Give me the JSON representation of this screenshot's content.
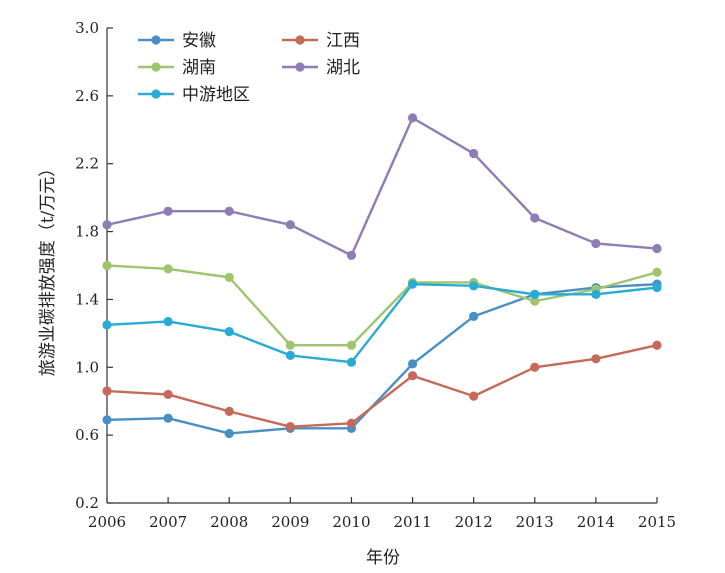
{
  "chart_data": {
    "type": "line",
    "title": "",
    "xlabel": "年份",
    "ylabel": "旅游业碳排放强度（t/万元）",
    "x": [
      "2006",
      "2007",
      "2008",
      "2009",
      "2010",
      "2011",
      "2012",
      "2013",
      "2014",
      "2015"
    ],
    "ylim": [
      0.2,
      3.0
    ],
    "yticks": [
      "3.0",
      "2.6",
      "2.2",
      "1.8",
      "1.4",
      "1.0",
      "0.6",
      "0.2"
    ],
    "grid": false,
    "legend_position": "top-left",
    "series": [
      {
        "name": "安徽",
        "color": "#4a8fc4",
        "values": [
          0.69,
          0.7,
          0.61,
          0.64,
          0.64,
          1.02,
          1.3,
          1.43,
          1.47,
          1.49
        ]
      },
      {
        "name": "江西",
        "color": "#c56a5a",
        "values": [
          0.86,
          0.84,
          0.74,
          0.65,
          0.67,
          0.95,
          0.83,
          1.0,
          1.05,
          1.13
        ]
      },
      {
        "name": "湖南",
        "color": "#9fc46e",
        "values": [
          1.6,
          1.58,
          1.53,
          1.13,
          1.13,
          1.5,
          1.5,
          1.39,
          1.46,
          1.56
        ]
      },
      {
        "name": "湖北",
        "color": "#8d7db4",
        "values": [
          1.84,
          1.92,
          1.92,
          1.84,
          1.66,
          2.47,
          2.26,
          1.88,
          1.73,
          1.7
        ]
      },
      {
        "name": "中游地区",
        "color": "#2aabd3",
        "values": [
          1.25,
          1.27,
          1.21,
          1.07,
          1.03,
          1.49,
          1.48,
          1.43,
          1.43,
          1.47
        ]
      }
    ]
  }
}
